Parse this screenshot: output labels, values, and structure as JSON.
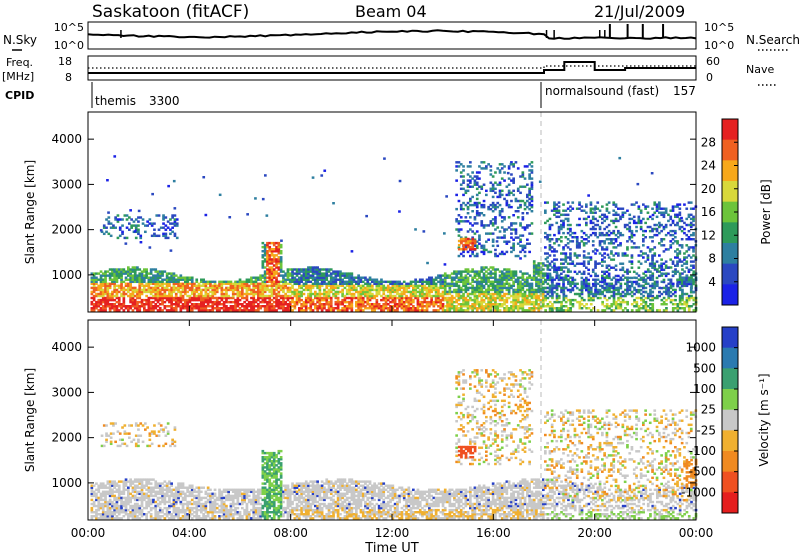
{
  "header": {
    "station": "Saskatoon (fitACF)",
    "beam": "Beam 04",
    "date": "21/Jul/2009"
  },
  "housekeeping": {
    "nsky_label": "N.Sky",
    "nsky_ticks": [
      "10^5",
      "10^0"
    ],
    "nsearch_label": "N.Search",
    "nsearch_ticks": [
      "10^5",
      "10^0"
    ],
    "freq_label": "Freq.",
    "freq_unit": "[MHz]",
    "freq_ticks": [
      "18",
      "8"
    ],
    "nave_label": "Nave",
    "nave_ticks": [
      "60",
      "0"
    ],
    "cpid_label": "CPID",
    "cpid_segments": [
      {
        "name": "themis",
        "id": "3300",
        "start_h": 0,
        "end_h": 18
      },
      {
        "name": "normalsound (fast)",
        "id": "157",
        "start_h": 18,
        "end_h": 24
      }
    ]
  },
  "chart_data": [
    {
      "type": "heatmap",
      "title": "Power",
      "ylabel": "Slant Range [km]",
      "xlabel": "",
      "ylim": [
        180,
        4600
      ],
      "xlim_hours": [
        0,
        24
      ],
      "yticks": [
        "1000",
        "2000",
        "3000",
        "4000"
      ],
      "colorbar": {
        "label": "Power [dB]",
        "ticks": [
          "4",
          "8",
          "12",
          "16",
          "20",
          "24",
          "28"
        ],
        "colors": [
          "#1b22e6",
          "#2b48c0",
          "#2e7fa0",
          "#2e9a5a",
          "#6cc43a",
          "#d8d83a",
          "#f7a81a",
          "#ef6020",
          "#e52020"
        ]
      },
      "dominant_echo_band_km": [
        200,
        1300
      ],
      "scatter_regions": [
        {
          "t0": 0.5,
          "t1": 3.5,
          "r0": 1800,
          "r1": 2300
        },
        {
          "t0": 14.5,
          "t1": 17.5,
          "r0": 1400,
          "r1": 3500
        },
        {
          "t0": 18.0,
          "t1": 24.0,
          "r0": 600,
          "r1": 2600
        }
      ]
    },
    {
      "type": "heatmap",
      "title": "Velocity",
      "ylabel": "Slant Range [km]",
      "xlabel": "Time UT",
      "ylim": [
        180,
        4600
      ],
      "xlim_hours": [
        0,
        24
      ],
      "yticks": [
        "1000",
        "2000",
        "3000",
        "4000"
      ],
      "xticks": [
        "00:00",
        "04:00",
        "08:00",
        "12:00",
        "16:00",
        "20:00",
        "00:00"
      ],
      "colorbar": {
        "label": "Velocity [m s⁻¹]",
        "ticks": [
          "1000",
          "500",
          "100",
          "25",
          "-25",
          "-100",
          "-500",
          "-1000"
        ],
        "colors": [
          "#2640c8",
          "#2a7ab0",
          "#3aa070",
          "#7ed04a",
          "#c8c8c8",
          "#f0b030",
          "#f08a20",
          "#ef5020",
          "#e51e1e"
        ]
      },
      "dominant_echo_band_km": [
        200,
        1000
      ]
    }
  ]
}
